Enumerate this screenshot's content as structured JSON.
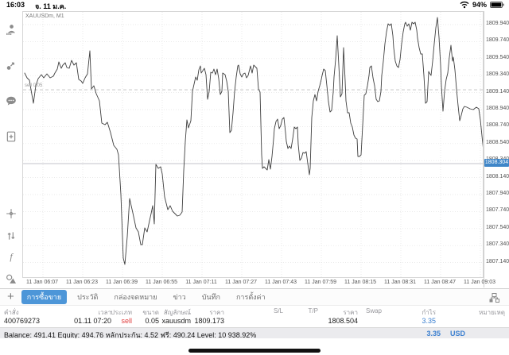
{
  "status_bar": {
    "time": "16:03",
    "date": "จ. 11 ม.ค.",
    "battery_percent": "94%"
  },
  "sidebar": {
    "icons": [
      "accounts-icon",
      "price-alert-icon",
      "chat-icon",
      "new-order-icon",
      "crosshair-icon",
      "trade-arrows-icon",
      "indicators-icon",
      "objects-icon"
    ],
    "timeframe_label": "M1"
  },
  "chart": {
    "type": "line",
    "symbol_label": "XAUUSDm, M1",
    "position_line_label": "sell 0.05",
    "position_price": 1809.173,
    "current_price": 1808.304,
    "current_price_label": "1808.304",
    "price_axis": [
      "1809.940",
      "1809.740",
      "1809.540",
      "1809.340",
      "1809.140",
      "1808.940",
      "1808.740",
      "1808.540",
      "1808.340",
      "1808.140",
      "1807.940",
      "1807.740",
      "1807.540",
      "1807.340",
      "1807.140"
    ],
    "time_axis": [
      "11 Jan 06:07",
      "11 Jan 06:23",
      "11 Jan 06:39",
      "11 Jan 06:55",
      "11 Jan 07:11",
      "11 Jan 07:27",
      "11 Jan 07:43",
      "11 Jan 07:59",
      "11 Jan 08:15",
      "11 Jan 08:31",
      "11 Jan 08:47",
      "11 Jan 09:03"
    ],
    "line_points": [
      [
        30,
        91
      ],
      [
        33,
        97
      ],
      [
        36,
        100
      ],
      [
        38,
        112
      ],
      [
        41,
        129
      ],
      [
        44,
        107
      ],
      [
        47,
        98
      ],
      [
        51,
        93
      ],
      [
        54,
        97
      ],
      [
        58,
        92
      ],
      [
        62,
        97
      ],
      [
        66,
        95
      ],
      [
        68,
        91
      ],
      [
        71,
        86
      ],
      [
        73,
        77
      ],
      [
        76,
        85
      ],
      [
        78,
        81
      ],
      [
        81,
        78
      ],
      [
        83,
        84
      ],
      [
        86,
        85
      ],
      [
        89,
        75
      ],
      [
        92,
        81
      ],
      [
        95,
        78
      ],
      [
        98,
        99
      ],
      [
        101,
        101
      ],
      [
        103,
        104
      ],
      [
        106,
        97
      ],
      [
        109,
        92
      ],
      [
        112,
        63
      ],
      [
        114,
        111
      ],
      [
        117,
        107
      ],
      [
        120,
        117
      ],
      [
        124,
        126
      ],
      [
        127,
        154
      ],
      [
        131,
        156
      ],
      [
        134,
        153
      ],
      [
        138,
        166
      ],
      [
        142,
        182
      ],
      [
        146,
        187
      ],
      [
        148,
        194
      ],
      [
        151,
        244
      ],
      [
        154,
        324
      ],
      [
        156,
        332
      ],
      [
        159,
        297
      ],
      [
        162,
        249
      ],
      [
        166,
        267
      ],
      [
        170,
        286
      ],
      [
        173,
        291
      ],
      [
        176,
        307
      ],
      [
        178,
        307
      ],
      [
        181,
        286
      ],
      [
        184,
        291
      ],
      [
        187,
        277
      ],
      [
        189,
        268
      ],
      [
        191,
        258
      ],
      [
        193,
        281
      ],
      [
        195,
        206
      ],
      [
        198,
        211
      ],
      [
        201,
        209
      ],
      [
        203,
        218
      ],
      [
        206,
        247
      ],
      [
        210,
        263
      ],
      [
        213,
        258
      ],
      [
        216,
        265
      ],
      [
        219,
        268
      ],
      [
        222,
        271
      ],
      [
        225,
        270
      ],
      [
        228,
        266
      ],
      [
        230,
        214
      ],
      [
        232,
        177
      ],
      [
        234,
        150
      ],
      [
        236,
        160
      ],
      [
        239,
        151
      ],
      [
        241,
        114
      ],
      [
        243,
        105
      ],
      [
        245,
        96
      ],
      [
        247,
        100
      ],
      [
        249,
        87
      ],
      [
        251,
        82
      ],
      [
        252,
        91
      ],
      [
        254,
        88
      ],
      [
        256,
        85
      ],
      [
        258,
        93
      ],
      [
        260,
        124
      ],
      [
        262,
        114
      ],
      [
        264,
        90
      ],
      [
        266,
        91
      ],
      [
        268,
        86
      ],
      [
        270,
        93
      ],
      [
        272,
        86
      ],
      [
        274,
        98
      ],
      [
        276,
        118
      ],
      [
        278,
        114
      ],
      [
        279,
        91
      ],
      [
        282,
        93
      ],
      [
        284,
        101
      ],
      [
        286,
        114
      ],
      [
        288,
        166
      ],
      [
        290,
        163
      ],
      [
        292,
        141
      ],
      [
        294,
        114
      ],
      [
        296,
        96
      ],
      [
        298,
        82
      ],
      [
        299,
        81
      ],
      [
        301,
        92
      ],
      [
        303,
        96
      ],
      [
        305,
        92
      ],
      [
        307,
        91
      ],
      [
        309,
        97
      ],
      [
        311,
        94
      ],
      [
        313,
        86
      ],
      [
        314,
        82
      ],
      [
        316,
        91
      ],
      [
        318,
        81
      ],
      [
        320,
        83
      ],
      [
        322,
        85
      ],
      [
        324,
        111
      ],
      [
        326,
        115
      ],
      [
        328,
        194
      ],
      [
        329,
        211
      ],
      [
        331,
        209
      ],
      [
        333,
        211
      ],
      [
        335,
        213
      ],
      [
        337,
        200
      ],
      [
        339,
        212
      ],
      [
        341,
        196
      ],
      [
        343,
        174
      ],
      [
        344,
        161
      ],
      [
        346,
        152
      ],
      [
        348,
        149
      ],
      [
        350,
        161
      ],
      [
        352,
        157
      ],
      [
        354,
        149
      ],
      [
        356,
        147
      ],
      [
        358,
        166
      ],
      [
        359,
        177
      ],
      [
        361,
        186
      ],
      [
        363,
        183
      ],
      [
        365,
        186
      ],
      [
        367,
        174
      ],
      [
        369,
        159
      ],
      [
        371,
        161
      ],
      [
        373,
        159
      ],
      [
        374,
        181
      ],
      [
        376,
        201
      ],
      [
        378,
        198
      ],
      [
        380,
        191
      ],
      [
        382,
        192
      ],
      [
        384,
        190
      ],
      [
        386,
        205
      ],
      [
        388,
        219
      ],
      [
        389,
        211
      ],
      [
        391,
        147
      ],
      [
        393,
        126
      ],
      [
        395,
        118
      ],
      [
        397,
        126
      ],
      [
        399,
        114
      ],
      [
        401,
        107
      ],
      [
        403,
        99
      ],
      [
        404,
        94
      ],
      [
        406,
        86
      ],
      [
        408,
        88
      ],
      [
        410,
        107
      ],
      [
        412,
        127
      ],
      [
        414,
        140
      ],
      [
        416,
        138
      ],
      [
        418,
        115
      ],
      [
        419,
        96
      ],
      [
        421,
        74
      ],
      [
        423,
        44
      ],
      [
        425,
        81
      ],
      [
        427,
        121
      ],
      [
        429,
        117
      ],
      [
        431,
        59
      ],
      [
        433,
        101
      ],
      [
        434,
        126
      ],
      [
        436,
        141
      ],
      [
        438,
        141
      ],
      [
        440,
        154
      ],
      [
        442,
        159
      ],
      [
        444,
        169
      ],
      [
        446,
        173
      ],
      [
        448,
        174
      ],
      [
        449,
        196
      ],
      [
        451,
        196
      ],
      [
        453,
        194
      ],
      [
        455,
        157
      ],
      [
        457,
        119
      ],
      [
        459,
        117
      ],
      [
        461,
        107
      ],
      [
        463,
        94
      ],
      [
        464,
        84
      ],
      [
        466,
        82
      ],
      [
        468,
        97
      ],
      [
        470,
        107
      ],
      [
        472,
        124
      ],
      [
        474,
        127
      ],
      [
        476,
        126
      ],
      [
        478,
        114
      ],
      [
        479,
        94
      ],
      [
        481,
        76
      ],
      [
        483,
        54
      ],
      [
        485,
        39
      ],
      [
        487,
        29
      ],
      [
        489,
        31
      ],
      [
        491,
        29
      ],
      [
        493,
        44
      ],
      [
        494,
        59
      ],
      [
        496,
        76
      ],
      [
        498,
        82
      ],
      [
        500,
        84
      ],
      [
        502,
        74
      ],
      [
        504,
        54
      ],
      [
        506,
        39
      ],
      [
        508,
        29
      ],
      [
        509,
        27
      ],
      [
        511,
        32
      ],
      [
        513,
        29
      ],
      [
        515,
        37
      ],
      [
        517,
        27
      ],
      [
        519,
        29
      ],
      [
        521,
        27
      ],
      [
        523,
        37
      ],
      [
        524,
        47
      ],
      [
        526,
        59
      ],
      [
        528,
        67
      ],
      [
        530,
        67
      ],
      [
        532,
        94
      ],
      [
        534,
        129
      ],
      [
        536,
        127
      ],
      [
        538,
        89
      ],
      [
        539,
        91
      ],
      [
        541,
        94
      ],
      [
        543,
        76
      ],
      [
        545,
        54
      ],
      [
        547,
        34
      ],
      [
        549,
        21
      ],
      [
        551,
        46
      ],
      [
        553,
        81
      ],
      [
        554,
        107
      ],
      [
        556,
        139
      ],
      [
        558,
        114
      ],
      [
        560,
        99
      ],
      [
        562,
        91
      ],
      [
        564,
        71
      ],
      [
        566,
        56
      ],
      [
        568,
        76
      ],
      [
        569,
        71
      ],
      [
        571,
        87
      ],
      [
        573,
        111
      ],
      [
        575,
        132
      ],
      [
        577,
        151
      ],
      [
        579,
        144
      ],
      [
        581,
        136
      ],
      [
        583,
        133
      ],
      [
        586,
        134
      ],
      [
        590,
        136
      ],
      [
        594,
        137
      ],
      [
        598,
        134
      ],
      [
        601,
        136
      ],
      [
        603,
        150
      ],
      [
        605,
        170
      ],
      [
        607,
        190
      ],
      [
        608,
        204
      ]
    ]
  },
  "tabs": {
    "items": [
      {
        "label": "การซื้อขาย",
        "active": true
      },
      {
        "label": "ประวัติ",
        "active": false
      },
      {
        "label": "กล่องจดหมาย",
        "active": false
      },
      {
        "label": "ข่าว",
        "active": false
      },
      {
        "label": "บันทึก",
        "active": false
      },
      {
        "label": "การตั้งค่า",
        "active": false
      }
    ]
  },
  "table": {
    "headers": [
      "คำสั่ง",
      "เวลา",
      "ประเภท",
      "ขนาด",
      "สัญลักษณ์",
      "ราคา",
      "S/L",
      "T/P",
      "ราคา",
      "Swap",
      "กำไร",
      "หมายเหตุ"
    ],
    "row": {
      "order": "400769273",
      "time": "01.11 07:20",
      "type": "sell",
      "size": "0.05",
      "symbol": "xauusdm",
      "open_price": "1809.173",
      "sl": "",
      "tp": "",
      "current_price": "1808.504",
      "swap": "",
      "profit": "3.35",
      "note": ""
    }
  },
  "balance": {
    "text": "Balance: 491.41 Equity: 494.76 หลักประกัน: 4.52 ฟรี: 490.24 Level: 10 938.92%",
    "amount": "3.35",
    "currency": "USD"
  },
  "colors": {
    "accent_blue": "#3a7fd0",
    "tab_active": "#4d96d8",
    "sell_red": "#e03e3e",
    "price_tag": "#3f86c8"
  }
}
